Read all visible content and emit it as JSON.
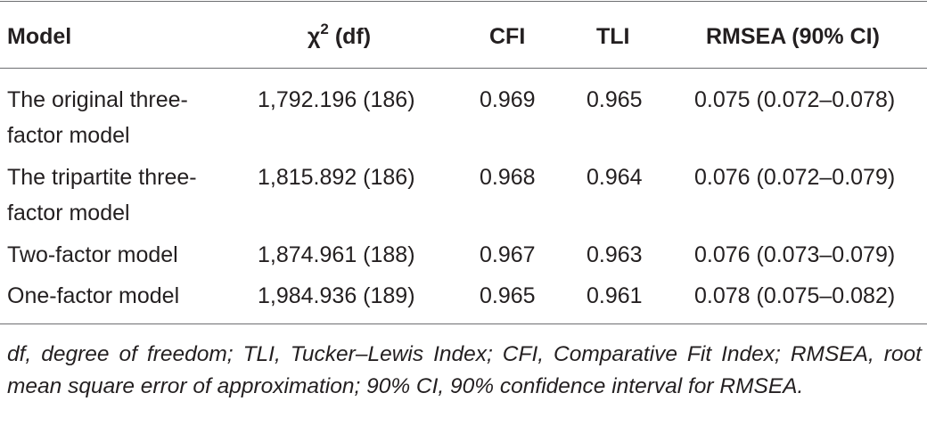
{
  "table": {
    "headers": {
      "model": "Model",
      "chi_symbol": "χ",
      "chi_sup": "2",
      "chi_rest": " (df)",
      "cfi": "CFI",
      "tli": "TLI",
      "rmsea": "RMSEA (90% CI)"
    },
    "rows": [
      {
        "model": "The original three-factor model",
        "chi": "1,792.196 (186)",
        "cfi": "0.969",
        "tli": "0.965",
        "rmsea": "0.075 (0.072–0.078)"
      },
      {
        "model": "The tripartite three-factor model",
        "chi": "1,815.892 (186)",
        "cfi": "0.968",
        "tli": "0.964",
        "rmsea": "0.076 (0.072–0.079)"
      },
      {
        "model": "Two-factor model",
        "chi": "1,874.961 (188)",
        "cfi": "0.967",
        "tli": "0.963",
        "rmsea": "0.076 (0.073–0.079)"
      },
      {
        "model": "One-factor model",
        "chi": "1,984.936 (189)",
        "cfi": "0.965",
        "tli": "0.961",
        "rmsea": "0.078 (0.075–0.082)"
      }
    ],
    "footnote": "df, degree of freedom; TLI, Tucker–Lewis Index; CFI, Comparative Fit Index; RMSEA, root mean square error of approximation; 90% CI, 90% confidence interval for RMSEA."
  }
}
